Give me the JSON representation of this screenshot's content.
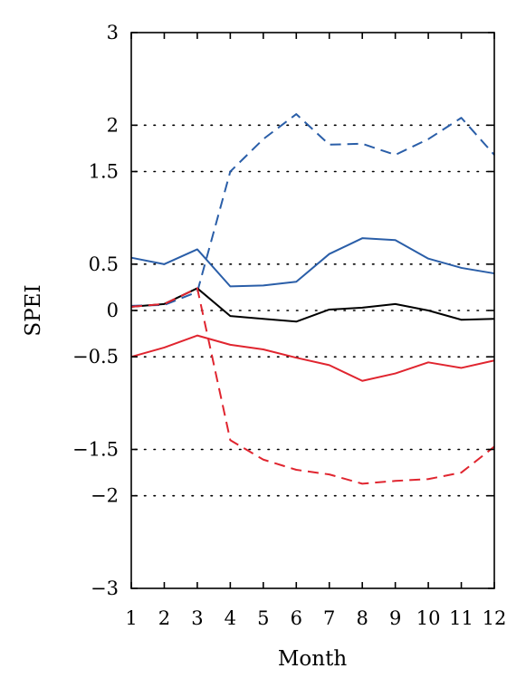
{
  "chart_data": {
    "type": "line",
    "title": "",
    "xlabel": "Month",
    "ylabel": "SPEI",
    "xlim": [
      1,
      12
    ],
    "ylim": [
      -3,
      3
    ],
    "x": [
      1,
      2,
      3,
      4,
      5,
      6,
      7,
      8,
      9,
      10,
      11,
      12
    ],
    "xticks": [
      "1",
      "2",
      "3",
      "4",
      "5",
      "6",
      "7",
      "8",
      "9",
      "10",
      "11",
      "12"
    ],
    "yticks": [
      {
        "value": 3,
        "label": "3"
      },
      {
        "value": 2,
        "label": "2"
      },
      {
        "value": 1.5,
        "label": "1.5"
      },
      {
        "value": 0.5,
        "label": "0.5"
      },
      {
        "value": 0,
        "label": "0"
      },
      {
        "value": -0.5,
        "label": "−0.5"
      },
      {
        "value": -1.5,
        "label": "−1.5"
      },
      {
        "value": -2,
        "label": "−2"
      },
      {
        "value": -3,
        "label": "−3"
      }
    ],
    "grid": {
      "horizontal_at": [
        2,
        1.5,
        0.5,
        0,
        -0.5,
        -1.5,
        -2
      ],
      "style": "dotted"
    },
    "series": [
      {
        "color": "#2a5ea8",
        "dash": "dashed",
        "values": [
          0.05,
          0.06,
          0.2,
          1.5,
          1.85,
          2.12,
          1.79,
          1.8,
          1.68,
          1.85,
          2.08,
          1.68
        ]
      },
      {
        "color": "#2a5ea8",
        "dash": "solid",
        "values": [
          0.57,
          0.5,
          0.66,
          0.26,
          0.27,
          0.31,
          0.61,
          0.78,
          0.76,
          0.56,
          0.46,
          0.4
        ]
      },
      {
        "color": "#000000",
        "dash": "solid",
        "values": [
          0.04,
          0.07,
          0.24,
          -0.06,
          -0.09,
          -0.12,
          0.01,
          0.03,
          0.07,
          0.0,
          -0.1,
          -0.09
        ]
      },
      {
        "color": "#e0252f",
        "dash": "solid",
        "values": [
          -0.5,
          -0.4,
          -0.27,
          -0.37,
          -0.42,
          -0.51,
          -0.59,
          -0.76,
          -0.68,
          -0.56,
          -0.62,
          -0.54
        ]
      },
      {
        "color": "#e0252f",
        "dash": "dashed",
        "values": [
          0.04,
          0.07,
          0.24,
          -1.4,
          -1.61,
          -1.72,
          -1.77,
          -1.87,
          -1.84,
          -1.82,
          -1.75,
          -1.47
        ]
      }
    ]
  }
}
